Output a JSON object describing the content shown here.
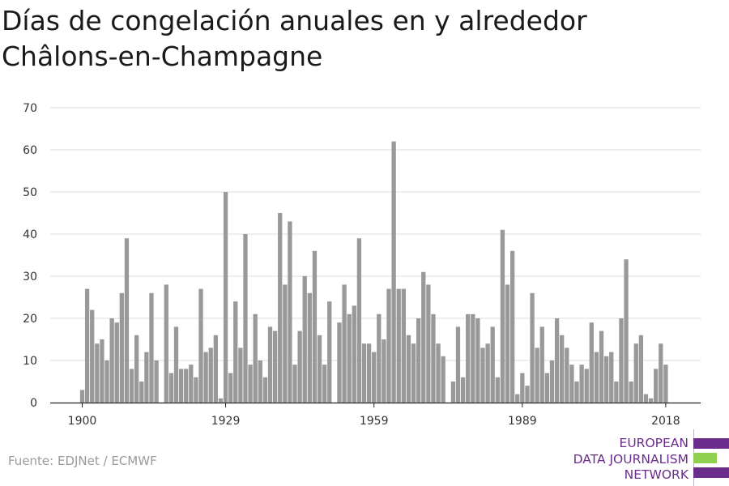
{
  "title_lines": [
    "Días de congelación anuales en y alrededor",
    "Châlons-en-Champagne"
  ],
  "source": "Fuente: EDJNet / ECMWF",
  "logo": {
    "lines": [
      "EUROPEAN",
      "DATA JOURNALISM",
      "NETWORK"
    ],
    "text_color": "#6b2d8c",
    "bar_colors": [
      "#6b2d8c",
      "#8fd14f",
      "#6b2d8c"
    ]
  },
  "chart_data": {
    "type": "bar",
    "title": "",
    "xlabel": "",
    "ylabel": "",
    "ylim": [
      0,
      70
    ],
    "yticks": [
      0,
      10,
      20,
      30,
      40,
      50,
      60,
      70
    ],
    "xticks": [
      1900,
      1929,
      1959,
      1989,
      2018
    ],
    "grid": true,
    "bar_color": "#999999",
    "series": [
      {
        "x": [
          1900,
          1901,
          1902,
          1903,
          1904,
          1905,
          1906,
          1907,
          1908,
          1909,
          1910,
          1911,
          1912,
          1913,
          1914,
          1915,
          1916,
          1917,
          1918,
          1919,
          1920,
          1921,
          1922,
          1923,
          1924,
          1925,
          1926,
          1927,
          1928,
          1929,
          1930,
          1931,
          1932,
          1933,
          1934,
          1935,
          1936,
          1937,
          1938,
          1939,
          1940,
          1941,
          1942,
          1943,
          1944,
          1945,
          1946,
          1947,
          1948,
          1949,
          1950,
          1951,
          1952,
          1953,
          1954,
          1955,
          1956,
          1957,
          1958,
          1959,
          1960,
          1961,
          1962,
          1963,
          1964,
          1965,
          1966,
          1967,
          1968,
          1969,
          1970,
          1971,
          1972,
          1973,
          1974,
          1975,
          1976,
          1977,
          1978,
          1979,
          1980,
          1981,
          1982,
          1983,
          1984,
          1985,
          1986,
          1987,
          1988,
          1989,
          1990,
          1991,
          1992,
          1993,
          1994,
          1995,
          1996,
          1997,
          1998,
          1999,
          2000,
          2001,
          2002,
          2003,
          2004,
          2005,
          2006,
          2007,
          2008,
          2009,
          2010,
          2011,
          2012,
          2013,
          2014,
          2015,
          2016,
          2017,
          2018
        ],
        "values": [
          3,
          27,
          22,
          14,
          15,
          10,
          20,
          19,
          26,
          39,
          8,
          16,
          5,
          12,
          26,
          10,
          0,
          28,
          7,
          18,
          8,
          8,
          9,
          6,
          27,
          12,
          13,
          16,
          1,
          50,
          7,
          24,
          13,
          40,
          9,
          21,
          10,
          6,
          18,
          17,
          45,
          28,
          43,
          9,
          17,
          30,
          26,
          36,
          16,
          9,
          24,
          0,
          19,
          28,
          21,
          23,
          39,
          14,
          14,
          12,
          21,
          15,
          27,
          62,
          27,
          27,
          16,
          14,
          20,
          31,
          28,
          21,
          14,
          11,
          0,
          5,
          18,
          6,
          21,
          21,
          20,
          13,
          14,
          18,
          6,
          41,
          28,
          36,
          2,
          7,
          4,
          26,
          13,
          18,
          7,
          10,
          20,
          16,
          13,
          9,
          5,
          9,
          8,
          19,
          12,
          17,
          11,
          12,
          5,
          20,
          34,
          5,
          14,
          16,
          2,
          1,
          8,
          14,
          9
        ]
      }
    ]
  }
}
